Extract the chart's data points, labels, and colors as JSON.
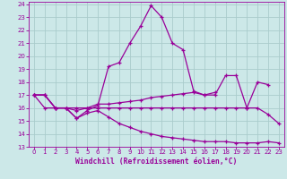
{
  "bg_color": "#cce8e8",
  "grid_color": "#aacccc",
  "line_color": "#990099",
  "xlabel": "Windchill (Refroidissement éolien,°C)",
  "xlim": [
    0,
    23
  ],
  "ylim": [
    13,
    24
  ],
  "yticks": [
    13,
    14,
    15,
    16,
    17,
    18,
    19,
    20,
    21,
    22,
    23,
    24
  ],
  "xticks": [
    0,
    1,
    2,
    3,
    4,
    5,
    6,
    7,
    8,
    9,
    10,
    11,
    12,
    13,
    14,
    15,
    16,
    17,
    18,
    19,
    20,
    21,
    22,
    23
  ],
  "series": [
    {
      "x": [
        0,
        1,
        2,
        3,
        4,
        5,
        6,
        7,
        8,
        9,
        10,
        11,
        12,
        13,
        14,
        15,
        16,
        17,
        18,
        19,
        20,
        21,
        22
      ],
      "y": [
        17.0,
        17.0,
        16.0,
        16.0,
        15.2,
        15.8,
        16.2,
        19.2,
        19.5,
        21.0,
        22.3,
        23.9,
        23.0,
        21.0,
        20.5,
        17.3,
        17.0,
        17.0,
        18.5,
        18.5,
        16.0,
        18.0,
        17.8
      ]
    },
    {
      "x": [
        0,
        1,
        2,
        3,
        4,
        5,
        6,
        7,
        8,
        9,
        10,
        11,
        12,
        13,
        14,
        15,
        16,
        17
      ],
      "y": [
        17.0,
        17.0,
        16.0,
        16.0,
        15.8,
        16.0,
        16.3,
        16.3,
        16.4,
        16.5,
        16.6,
        16.8,
        16.9,
        17.0,
        17.1,
        17.2,
        17.0,
        17.2
      ]
    },
    {
      "x": [
        0,
        1,
        2,
        3,
        4,
        5,
        6,
        7,
        8,
        9,
        10,
        11,
        12,
        13,
        14,
        15,
        16,
        17,
        18,
        19,
        20,
        21,
        22,
        23
      ],
      "y": [
        17.0,
        16.0,
        16.0,
        16.0,
        16.0,
        16.0,
        16.0,
        16.0,
        16.0,
        16.0,
        16.0,
        16.0,
        16.0,
        16.0,
        16.0,
        16.0,
        16.0,
        16.0,
        16.0,
        16.0,
        16.0,
        16.0,
        15.5,
        14.8
      ]
    },
    {
      "x": [
        0,
        1,
        2,
        3,
        4,
        5,
        6,
        7,
        8,
        9,
        10,
        11,
        12,
        13,
        14,
        15,
        16,
        17,
        18,
        19,
        20,
        21,
        22,
        23
      ],
      "y": [
        17.0,
        17.0,
        16.0,
        16.0,
        15.2,
        15.6,
        15.8,
        15.3,
        14.8,
        14.5,
        14.2,
        14.0,
        13.8,
        13.7,
        13.6,
        13.5,
        13.4,
        13.4,
        13.4,
        13.3,
        13.3,
        13.3,
        13.4,
        13.3
      ]
    }
  ]
}
